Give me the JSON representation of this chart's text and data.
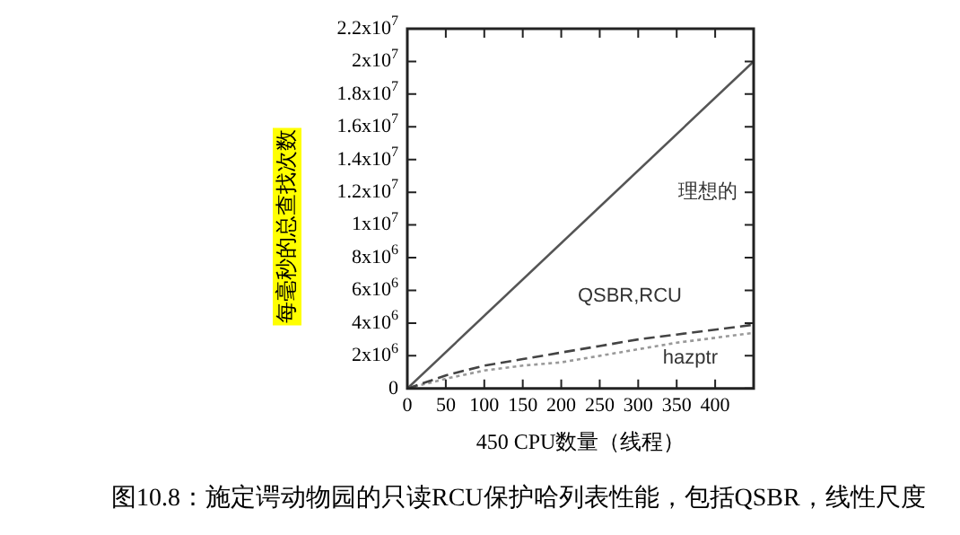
{
  "chart_data": {
    "type": "line",
    "xlabel": "450 CPU数量（线程）",
    "ylabel": "每毫秒的总查找次数",
    "series": [
      {
        "name": "理想的",
        "x": [
          0,
          450
        ],
        "values": [
          0,
          20000000
        ],
        "color": "#555555",
        "line_style": "solid"
      },
      {
        "name": "QSBR,RCU",
        "x": [
          0,
          50,
          100,
          150,
          200,
          250,
          300,
          350,
          400,
          450
        ],
        "values": [
          0,
          800000,
          1400000,
          1800000,
          2200000,
          2600000,
          3000000,
          3300000,
          3600000,
          3900000
        ],
        "color": "#444444",
        "line_style": "dashed"
      },
      {
        "name": "hazptr",
        "x": [
          0,
          50,
          100,
          150,
          200,
          250,
          300,
          350,
          400,
          450
        ],
        "values": [
          0,
          600000,
          1100000,
          1400000,
          1600000,
          2000000,
          2400000,
          2800000,
          3100000,
          3400000
        ],
        "color": "#999999",
        "line_style": "dotted"
      }
    ],
    "xlim": [
      0,
      450
    ],
    "xticks": [
      0,
      50,
      100,
      150,
      200,
      250,
      300,
      350,
      400
    ],
    "ylim": [
      0,
      22000000
    ],
    "yticks": [
      {
        "value": 0,
        "label": "0"
      },
      {
        "value": 2000000,
        "label": "2x10$^{6}$"
      },
      {
        "value": 4000000,
        "label": "4x10$^{6}$"
      },
      {
        "value": 6000000,
        "label": "6x10$^{6}$"
      },
      {
        "value": 8000000,
        "label": "8x10$^{6}$"
      },
      {
        "value": 10000000,
        "label": "1x10$^{7}$"
      },
      {
        "value": 12000000,
        "label": "1.2x10$^{7}$"
      },
      {
        "value": 14000000,
        "label": "1.4x10$^{7}$"
      },
      {
        "value": 16000000,
        "label": "1.6x10$^{7}$"
      },
      {
        "value": 18000000,
        "label": "1.8x10$^{7}$"
      },
      {
        "value": 20000000,
        "label": "2x10$^{7}$"
      },
      {
        "value": 22000000,
        "label": "2.2x10$^{7}$"
      }
    ],
    "grid": false,
    "legend": false,
    "marker": "none",
    "annotations": [
      "图10.8：施定谔动物园的只读RCU保护哈列表性能，包括QSBR，线性尺度"
    ]
  }
}
